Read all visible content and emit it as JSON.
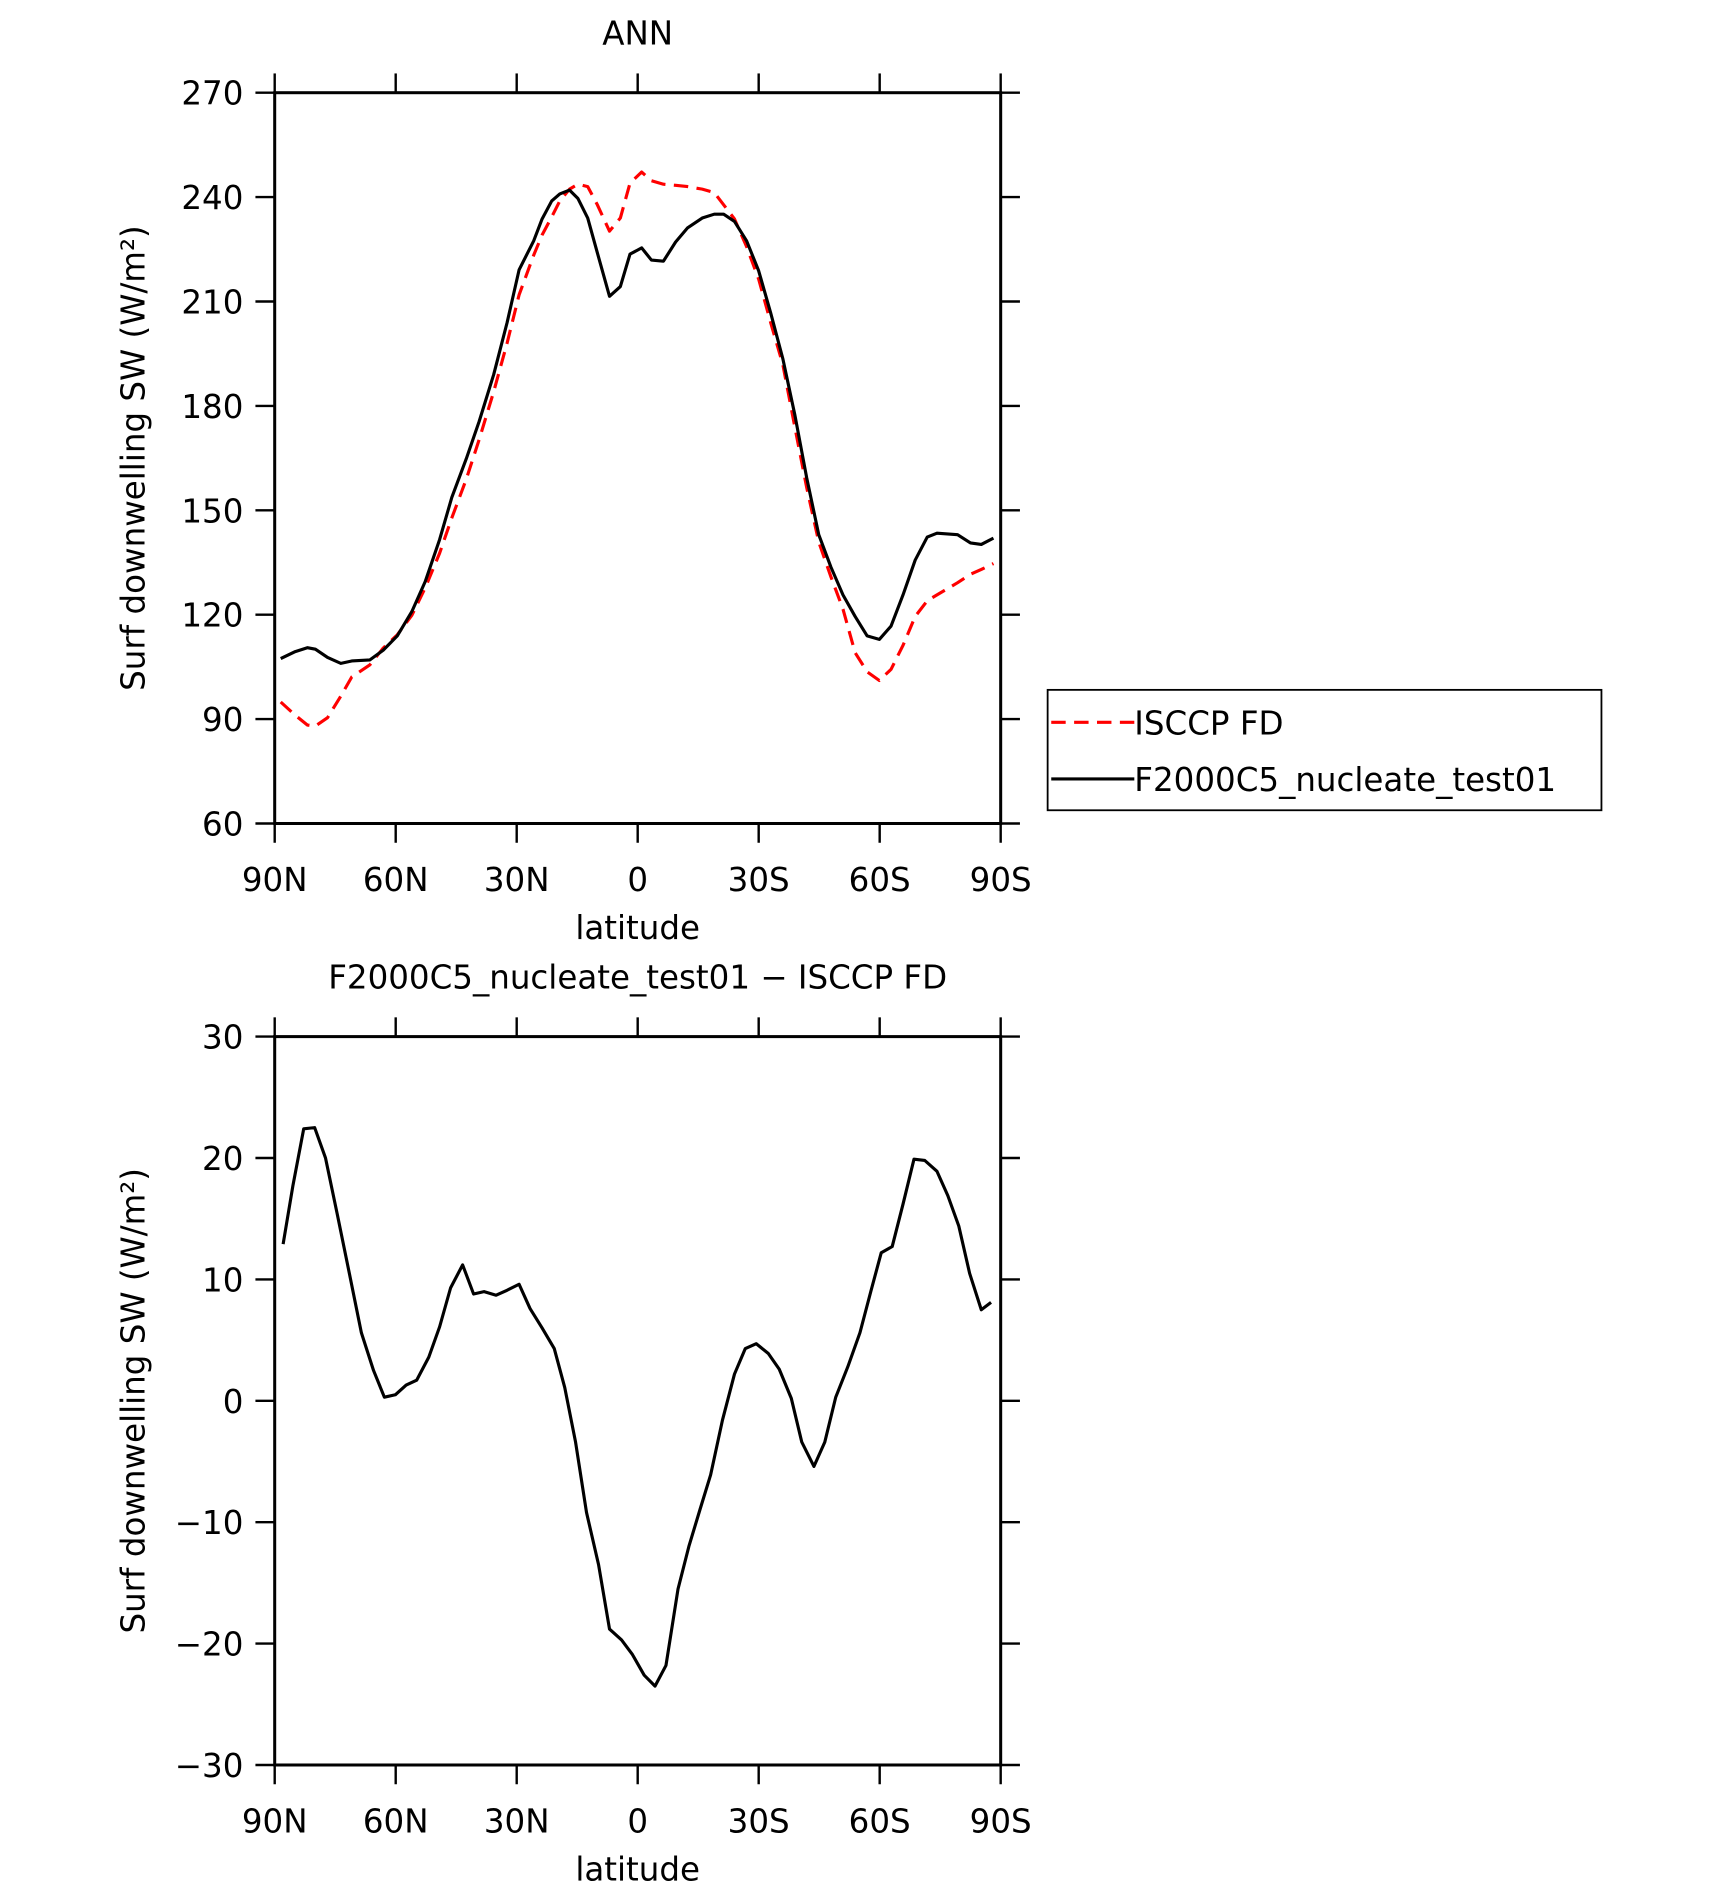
{
  "chart_data": [
    {
      "type": "line",
      "title": "ANN",
      "xlabel": "latitude",
      "ylabel": "Surf downwelling SW (W/m²)",
      "x": [
        88.5,
        84.9,
        81.9,
        79.9,
        76.9,
        73.6,
        70.9,
        66.4,
        63.1,
        59.6,
        56.0,
        52.7,
        49.1,
        46.1,
        42.5,
        39.3,
        35.7,
        32.4,
        29.4,
        25.8,
        23.7,
        21.3,
        19.3,
        16.9,
        14.8,
        12.4,
        10.0,
        7.0,
        4.3,
        1.9,
        -1.0,
        -3.4,
        -6.4,
        -9.4,
        -12.4,
        -16.0,
        -19.0,
        -21.3,
        -24.0,
        -27.0,
        -30.0,
        -33.0,
        -36.0,
        -39.0,
        -41.9,
        -44.9,
        -47.9,
        -50.9,
        -53.9,
        -56.9,
        -59.9,
        -62.8,
        -65.8,
        -68.8,
        -71.8,
        -74.2,
        -79.3,
        -82.5,
        -85.2,
        -88.2
      ],
      "series": [
        {
          "name": "ISCCP FD",
          "color": "#ff0000",
          "dash": true,
          "values": [
            94.9,
            91.1,
            88.3,
            88.0,
            90.4,
            96.6,
            102.1,
            105.6,
            110.4,
            114.2,
            119.8,
            127.7,
            137.7,
            147.8,
            158.9,
            170.3,
            184.1,
            198.0,
            211.9,
            223.3,
            229.1,
            234.3,
            238.9,
            242.3,
            243.7,
            243.0,
            237.8,
            230.2,
            234.0,
            244.0,
            247.2,
            244.7,
            243.7,
            243.4,
            243.0,
            242.3,
            241.3,
            237.8,
            233.7,
            225.7,
            216.4,
            203.9,
            191.8,
            173.8,
            156.5,
            140.9,
            130.9,
            121.6,
            109.1,
            103.6,
            101.1,
            104.3,
            111.2,
            119.5,
            124.0,
            125.7,
            129.2,
            131.6,
            133.0,
            134.7
          ]
        },
        {
          "name": "F2000C5_nucleate_test01",
          "color": "#000000",
          "dash": false,
          "values": [
            107.4,
            109.4,
            110.5,
            110.1,
            107.7,
            106.0,
            106.7,
            107.0,
            109.8,
            113.9,
            120.9,
            129.5,
            141.6,
            153.7,
            164.8,
            175.5,
            189.0,
            203.9,
            219.1,
            227.4,
            233.7,
            238.9,
            240.9,
            242.0,
            239.6,
            234.0,
            224.0,
            211.5,
            214.3,
            223.6,
            225.4,
            221.9,
            221.6,
            227.1,
            231.2,
            234.0,
            235.1,
            235.1,
            233.0,
            227.4,
            218.8,
            206.7,
            193.5,
            177.3,
            159.3,
            143.0,
            133.7,
            125.7,
            119.5,
            113.9,
            112.9,
            116.7,
            125.7,
            135.7,
            142.3,
            143.4,
            143.0,
            140.6,
            140.2,
            142.0
          ]
        }
      ],
      "xlim": [
        90,
        -90
      ],
      "xticks": [
        {
          "value": 90,
          "label": "90N"
        },
        {
          "value": 60,
          "label": "60N"
        },
        {
          "value": 30,
          "label": "30N"
        },
        0,
        {
          "value": -30,
          "label": "30S"
        },
        {
          "value": -60,
          "label": "60S"
        },
        {
          "value": -90,
          "label": "90S"
        }
      ],
      "ylim": [
        60,
        270
      ],
      "yticks": [
        60,
        90,
        120,
        150,
        180,
        210,
        240,
        270
      ],
      "legend": "right"
    },
    {
      "type": "line",
      "title": "F2000C5_nucleate_test01 − ISCCP FD",
      "xlabel": "latitude",
      "ylabel": "Surf downwelling SW (W/m²)",
      "x": [
        87.9,
        85.5,
        82.8,
        80.1,
        77.4,
        74.5,
        71.5,
        68.5,
        65.5,
        62.8,
        60.1,
        57.4,
        54.8,
        51.8,
        49.1,
        46.4,
        43.4,
        40.7,
        38.1,
        35.1,
        32.4,
        29.4,
        26.7,
        23.7,
        20.7,
        18.1,
        15.4,
        12.7,
        9.7,
        7.0,
        4.0,
        1.3,
        -1.6,
        -4.3,
        -7.0,
        -10.0,
        -12.7,
        -15.4,
        -18.1,
        -21.0,
        -24.0,
        -26.7,
        -29.4,
        -32.4,
        -35.1,
        -38.1,
        -40.7,
        -43.7,
        -46.4,
        -49.1,
        -52.1,
        -55.1,
        -57.8,
        -60.4,
        -63.1,
        -65.8,
        -68.5,
        -71.2,
        -74.2,
        -76.9,
        -79.6,
        -82.3,
        -85.2,
        -87.6
      ],
      "values": [
        12.9,
        17.7,
        22.4,
        22.5,
        20.0,
        15.4,
        10.5,
        5.6,
        2.5,
        0.3,
        0.5,
        1.3,
        1.7,
        3.6,
        6.1,
        9.3,
        11.2,
        8.8,
        9.0,
        8.7,
        9.1,
        9.6,
        7.6,
        6.0,
        4.3,
        1.1,
        -3.4,
        -9.2,
        -13.5,
        -18.8,
        -19.7,
        -20.9,
        -22.6,
        -23.5,
        -21.8,
        -15.5,
        -12.0,
        -9.0,
        -6.1,
        -1.6,
        2.2,
        4.3,
        4.7,
        3.9,
        2.6,
        0.2,
        -3.4,
        -5.4,
        -3.4,
        0.3,
        2.8,
        5.6,
        9.0,
        12.2,
        12.7,
        16.2,
        19.9,
        19.8,
        18.9,
        16.9,
        14.4,
        10.5,
        7.5,
        8.1
      ],
      "color": "#000000",
      "xlim": [
        90,
        -90
      ],
      "xticks": [
        {
          "value": 90,
          "label": "90N"
        },
        {
          "value": 60,
          "label": "60N"
        },
        {
          "value": 30,
          "label": "30N"
        },
        0,
        {
          "value": -30,
          "label": "30S"
        },
        {
          "value": -60,
          "label": "60S"
        },
        {
          "value": -90,
          "label": "90S"
        }
      ],
      "ylim": [
        -30,
        30
      ],
      "yticks": [
        {
          "value": -30,
          "label": "−30"
        },
        {
          "value": -20,
          "label": "−20"
        },
        {
          "value": -10,
          "label": "−10"
        },
        0,
        10,
        20,
        30
      ]
    }
  ]
}
